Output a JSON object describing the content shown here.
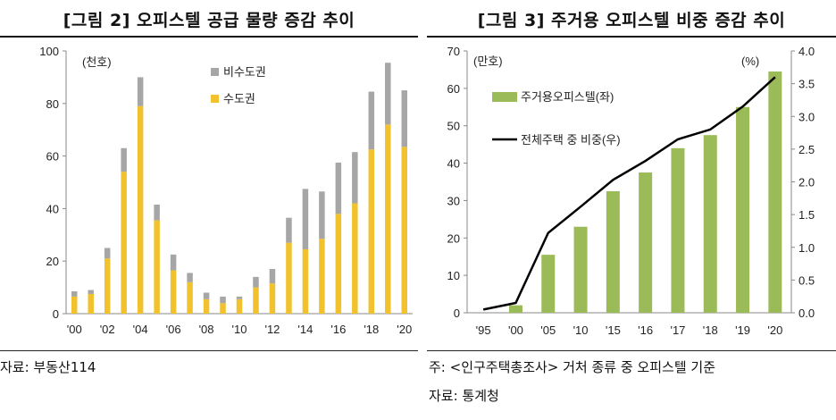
{
  "left": {
    "title": "[그림 2] 오피스텔 공급 물량 증감 추이",
    "source": "자료: 부동산114",
    "chart_data": {
      "type": "bar",
      "stacked": true,
      "unit_label": "(천호)",
      "categories": [
        "'00",
        "'01",
        "'02",
        "'03",
        "'04",
        "'05",
        "'06",
        "'07",
        "'08",
        "'09",
        "'10",
        "'11",
        "'12",
        "'13",
        "'14",
        "'15",
        "'16",
        "'17",
        "'18",
        "'19",
        "'20"
      ],
      "x_tick_labels": [
        "'00",
        "'02",
        "'04",
        "'06",
        "'08",
        "'10",
        "'12",
        "'14",
        "'16",
        "'18",
        "'20"
      ],
      "ylim": [
        0,
        100
      ],
      "yticks": [
        "0",
        "20",
        "40",
        "60",
        "80",
        "100"
      ],
      "legend_position": "top-right",
      "series": [
        {
          "name": "수도권",
          "color": "#F2C12E",
          "values": [
            6.5,
            7.5,
            21,
            54,
            79,
            35.5,
            16.5,
            12,
            5.5,
            4,
            5.5,
            10,
            11.5,
            27,
            24.5,
            28.5,
            38,
            42,
            62.5,
            72,
            63.5
          ]
        },
        {
          "name": "비수도권",
          "color": "#A6A6A6",
          "values": [
            2,
            1.5,
            4,
            9,
            11,
            6,
            6,
            3.5,
            2.5,
            2.5,
            1,
            4,
            5.5,
            9.5,
            23,
            18,
            19.5,
            19.5,
            22,
            23.5,
            21.5
          ]
        }
      ]
    }
  },
  "right": {
    "title": "[그림 3] 주거용 오피스텔 비중 증감 추이",
    "note": "주: <인구주택총조사> 거처 종류 중 오피스텔 기준",
    "source": "자료: 통계청",
    "chart_data": {
      "type": "bar+line",
      "left_unit_label": "(만호)",
      "right_unit_label": "(%)",
      "categories": [
        "'95",
        "'00",
        "'05",
        "'10",
        "'15",
        "'16",
        "'17",
        "'18",
        "'19",
        "'20"
      ],
      "ylim_left": [
        0,
        70
      ],
      "yticks_left": [
        "0",
        "10",
        "20",
        "30",
        "40",
        "50",
        "60",
        "70"
      ],
      "ylim_right": [
        0,
        4.0
      ],
      "yticks_right": [
        "0.0",
        "0.5",
        "1.0",
        "1.5",
        "2.0",
        "2.5",
        "3.0",
        "3.5",
        "4.0"
      ],
      "legend_position": "top-left",
      "series": [
        {
          "name": "주거용오피스텔(좌)",
          "type": "bar",
          "axis": "left",
          "color": "#9BBB59",
          "values": [
            0,
            2,
            15.5,
            23,
            32.5,
            37.5,
            44,
            47.5,
            55,
            64.5
          ]
        },
        {
          "name": "전체주택 중 비중(우)",
          "type": "line",
          "axis": "right",
          "color": "#000000",
          "values": [
            0.05,
            0.15,
            1.22,
            1.62,
            2.03,
            2.32,
            2.65,
            2.8,
            3.15,
            3.6
          ]
        }
      ]
    }
  }
}
